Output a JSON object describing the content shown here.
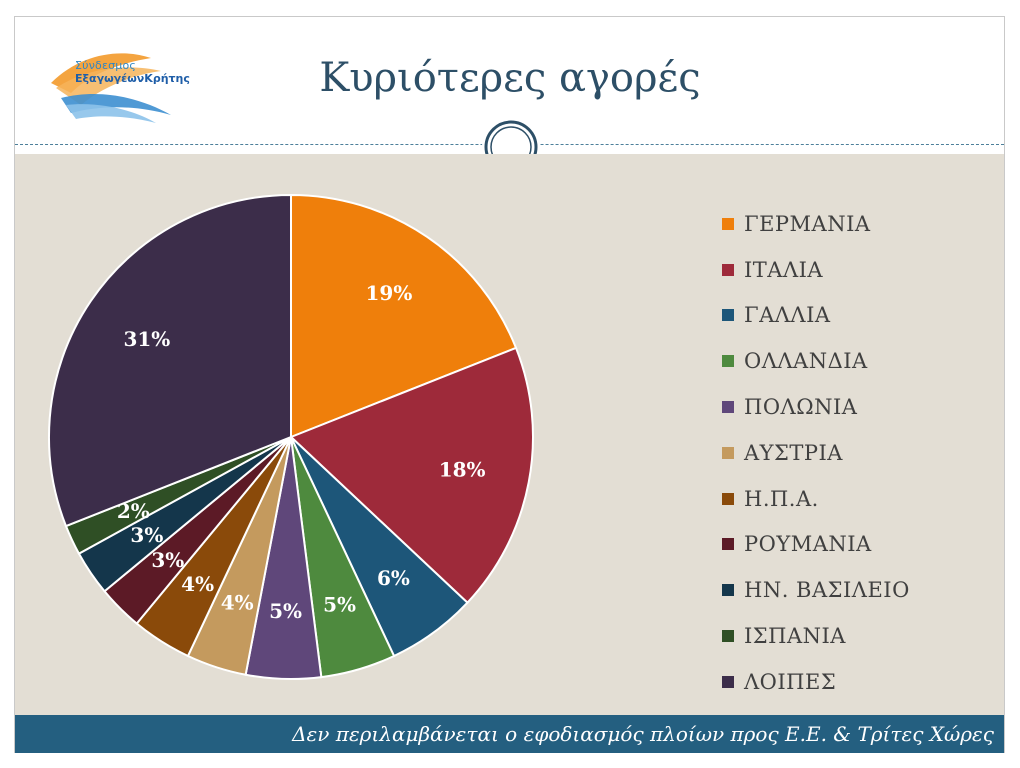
{
  "header": {
    "title": "Κυριότερες αγορές",
    "logo_line1": "Σύνδεσμος",
    "logo_line2": "ΕξαγωγέωνΚρήτης"
  },
  "footer": {
    "note": "Δεν περιλαμβάνεται ο εφοδιασμός πλοίων προς Ε.Ε. & Τρίτες Χώρες"
  },
  "chart_data": {
    "type": "pie",
    "title": "",
    "legend_position": "right",
    "slices": [
      {
        "label": "ΓΕΡΜΑΝΙΑ",
        "value": 19,
        "display": "19%",
        "color": "#ef7f0b"
      },
      {
        "label": "ΙΤΑΛΙΑ",
        "value": 18,
        "display": "18%",
        "color": "#9e2a3a"
      },
      {
        "label": "ΓΑΛΛΙΑ",
        "value": 6,
        "display": "6%",
        "color": "#1d5679"
      },
      {
        "label": "ΟΛΛΑΝΔΙΑ",
        "value": 5,
        "display": "5%",
        "color": "#4e8a3e"
      },
      {
        "label": "ΠΟΛΩΝΙΑ",
        "value": 5,
        "display": "5%",
        "color": "#5f477a"
      },
      {
        "label": "ΑΥΣΤΡΙΑ",
        "value": 4,
        "display": "4%",
        "color": "#c49a5e"
      },
      {
        "label": "Η.Π.Α.",
        "value": 4,
        "display": "4%",
        "color": "#8a4a0a"
      },
      {
        "label": "ΡΟΥΜΑΝΙΑ",
        "value": 3,
        "display": "3%",
        "color": "#5c1a26"
      },
      {
        "label": "ΗΝ. ΒΑΣΙΛΕΙΟ",
        "value": 3,
        "display": "3%",
        "color": "#14364b"
      },
      {
        "label": "ΙΣΠΑΝΙΑ",
        "value": 2,
        "display": "2%",
        "color": "#2f4f25"
      },
      {
        "label": "ΛΟΙΠΕΣ",
        "value": 31,
        "display": "31%",
        "color": "#3c2d4a"
      }
    ]
  }
}
